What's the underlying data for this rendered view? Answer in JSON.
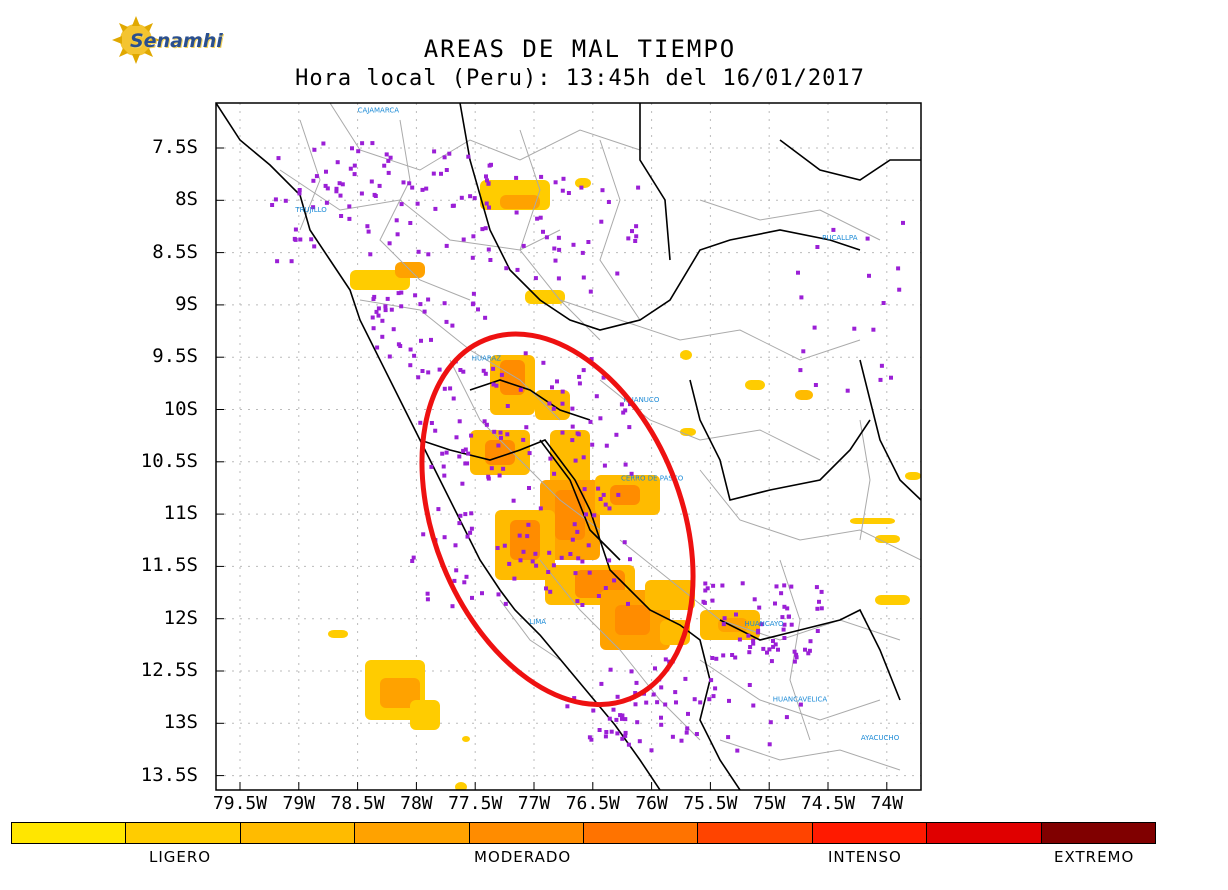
{
  "logo": {
    "text": "Senamhi"
  },
  "title": "AREAS DE MAL TIEMPO",
  "subtitle": "Hora local (Peru): 13:45h del 16/01/2017",
  "axes": {
    "y_ticks": [
      "7.5S",
      "8S",
      "8.5S",
      "9S",
      "9.5S",
      "10S",
      "10.5S",
      "11S",
      "11.5S",
      "12S",
      "12.5S",
      "13S",
      "13.5S"
    ],
    "x_ticks": [
      "79.5W",
      "79W",
      "78.5W",
      "78W",
      "77.5W",
      "77W",
      "76.5W",
      "76W",
      "75.5W",
      "75W",
      "74.5W",
      "74W"
    ]
  },
  "cities": [
    {
      "name": "CAJAMARCA",
      "lon": -78.5,
      "lat": -7.16
    },
    {
      "name": "TRUJILLO",
      "lon": -79.03,
      "lat": -8.11
    },
    {
      "name": "PUCALLPA",
      "lon": -74.55,
      "lat": -8.38
    },
    {
      "name": "HUARAZ",
      "lon": -77.53,
      "lat": -9.53
    },
    {
      "name": "HUANUCO",
      "lon": -76.24,
      "lat": -9.93
    },
    {
      "name": "CERRO DE PASCO",
      "lon": -76.26,
      "lat": -10.68
    },
    {
      "name": "LIMA",
      "lon": -77.04,
      "lat": -12.05
    },
    {
      "name": "HUANCAYO",
      "lon": -75.21,
      "lat": -12.07
    },
    {
      "name": "HUANCAVELICA",
      "lon": -74.97,
      "lat": -12.79
    },
    {
      "name": "AYACUCHO",
      "lon": -74.22,
      "lat": -13.16
    }
  ],
  "legend": {
    "colors": [
      "#ffe600",
      "#ffcc00",
      "#ffbb00",
      "#ffa200",
      "#ff8c00",
      "#ff7300",
      "#ff4400",
      "#ff1a00",
      "#e00000",
      "#800000"
    ],
    "labels": [
      "LIGERO",
      "MODERADO",
      "INTENSO",
      "EXTREMO"
    ]
  },
  "highlight": {
    "color": "#ee1111",
    "center_lon": -76.8,
    "center_lat": -11.05,
    "rx_deg": 1.05,
    "ry_deg": 1.85,
    "rotation_deg": -22
  }
}
